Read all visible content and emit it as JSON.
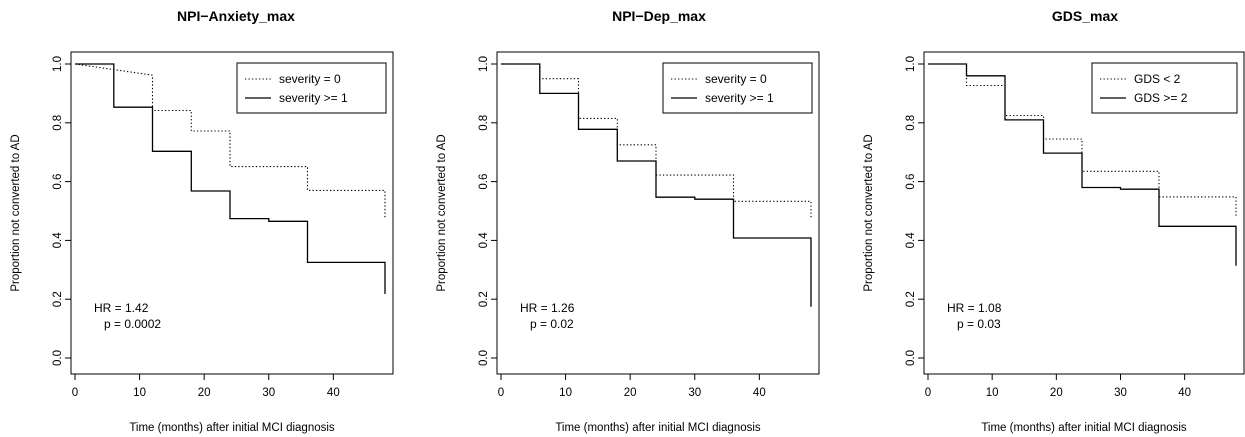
{
  "chart_data": [
    {
      "type": "line",
      "subtype": "kaplan-meier-step",
      "title": "NPI−Anxiety_max",
      "xlabel": "Time (months) after initial MCI diagnosis",
      "ylabel": "Proportion not converted to AD",
      "xlim": [
        0,
        48
      ],
      "ylim": [
        0,
        1.0
      ],
      "xticks": [
        0,
        10,
        20,
        30,
        40
      ],
      "yticks": [
        "0.0",
        "0.2",
        "0.4",
        "0.6",
        "0.8",
        "1.0"
      ],
      "legend_position": "top-right",
      "annotation": {
        "hr": "HR = 1.42",
        "p": "p = 0.0002"
      },
      "series": [
        {
          "name": "severity = 0",
          "line_style": "dotted",
          "steps": [
            [
              0,
              1.0
            ],
            [
              12,
              0.962
            ],
            [
              12,
              0.842
            ],
            [
              18,
              0.842
            ],
            [
              18,
              0.772
            ],
            [
              24,
              0.772
            ],
            [
              24,
              0.651
            ],
            [
              36,
              0.651
            ],
            [
              36,
              0.57
            ],
            [
              48,
              0.57
            ],
            [
              48,
              0.475
            ]
          ]
        },
        {
          "name": "severity >= 1",
          "line_style": "solid",
          "steps": [
            [
              0,
              1.0
            ],
            [
              6,
              1.0
            ],
            [
              6,
              0.853
            ],
            [
              12,
              0.853
            ],
            [
              12,
              0.703
            ],
            [
              18,
              0.703
            ],
            [
              18,
              0.568
            ],
            [
              24,
              0.568
            ],
            [
              24,
              0.474
            ],
            [
              30,
              0.474
            ],
            [
              30,
              0.465
            ],
            [
              36,
              0.465
            ],
            [
              36,
              0.325
            ],
            [
              48,
              0.325
            ],
            [
              48,
              0.218
            ]
          ]
        }
      ]
    },
    {
      "type": "line",
      "subtype": "kaplan-meier-step",
      "title": "NPI−Dep_max",
      "xlabel": "Time (months) after initial MCI diagnosis",
      "ylabel": "Proportion not converted to AD",
      "xlim": [
        0,
        48
      ],
      "ylim": [
        0,
        1.0
      ],
      "xticks": [
        0,
        10,
        20,
        30,
        40
      ],
      "yticks": [
        "0.0",
        "0.2",
        "0.4",
        "0.6",
        "0.8",
        "1.0"
      ],
      "legend_position": "top-right",
      "annotation": {
        "hr": "HR = 1.26",
        "p": "p = 0.02"
      },
      "series": [
        {
          "name": "severity = 0",
          "line_style": "dotted",
          "steps": [
            [
              0,
              1.0
            ],
            [
              6,
              1.0
            ],
            [
              6,
              0.95
            ],
            [
              12,
              0.95
            ],
            [
              12,
              0.815
            ],
            [
              18,
              0.815
            ],
            [
              18,
              0.725
            ],
            [
              24,
              0.725
            ],
            [
              24,
              0.622
            ],
            [
              36,
              0.622
            ],
            [
              36,
              0.533
            ],
            [
              48,
              0.533
            ],
            [
              48,
              0.477
            ]
          ]
        },
        {
          "name": "severity >= 1",
          "line_style": "solid",
          "steps": [
            [
              0,
              1.0
            ],
            [
              6,
              1.0
            ],
            [
              6,
              0.9
            ],
            [
              12,
              0.9
            ],
            [
              12,
              0.778
            ],
            [
              18,
              0.778
            ],
            [
              18,
              0.67
            ],
            [
              24,
              0.67
            ],
            [
              24,
              0.547
            ],
            [
              30,
              0.547
            ],
            [
              30,
              0.54
            ],
            [
              36,
              0.54
            ],
            [
              36,
              0.408
            ],
            [
              48,
              0.408
            ],
            [
              48,
              0.174
            ]
          ]
        }
      ]
    },
    {
      "type": "line",
      "subtype": "kaplan-meier-step",
      "title": "GDS_max",
      "xlabel": "Time (months) after initial MCI diagnosis",
      "ylabel": "Proportion not converted to AD",
      "xlim": [
        0,
        48
      ],
      "ylim": [
        0,
        1.0
      ],
      "xticks": [
        0,
        10,
        20,
        30,
        40
      ],
      "yticks": [
        "0.0",
        "0.2",
        "0.4",
        "0.6",
        "0.8",
        "1.0"
      ],
      "legend_position": "top-right",
      "annotation": {
        "hr": "HR = 1.08",
        "p": "p = 0.03"
      },
      "series": [
        {
          "name": "GDS < 2",
          "line_style": "dotted",
          "steps": [
            [
              0,
              1.0
            ],
            [
              6,
              1.0
            ],
            [
              6,
              0.927
            ],
            [
              12,
              0.927
            ],
            [
              12,
              0.825
            ],
            [
              18,
              0.825
            ],
            [
              18,
              0.745
            ],
            [
              24,
              0.745
            ],
            [
              24,
              0.635
            ],
            [
              36,
              0.635
            ],
            [
              36,
              0.548
            ],
            [
              48,
              0.548
            ],
            [
              48,
              0.48
            ]
          ]
        },
        {
          "name": "GDS >= 2",
          "line_style": "solid",
          "steps": [
            [
              0,
              1.0
            ],
            [
              6,
              1.0
            ],
            [
              6,
              0.96
            ],
            [
              12,
              0.96
            ],
            [
              12,
              0.81
            ],
            [
              18,
              0.81
            ],
            [
              18,
              0.697
            ],
            [
              24,
              0.697
            ],
            [
              24,
              0.58
            ],
            [
              30,
              0.58
            ],
            [
              30,
              0.574
            ],
            [
              36,
              0.574
            ],
            [
              36,
              0.448
            ],
            [
              48,
              0.448
            ],
            [
              48,
              0.314
            ]
          ]
        }
      ]
    }
  ]
}
